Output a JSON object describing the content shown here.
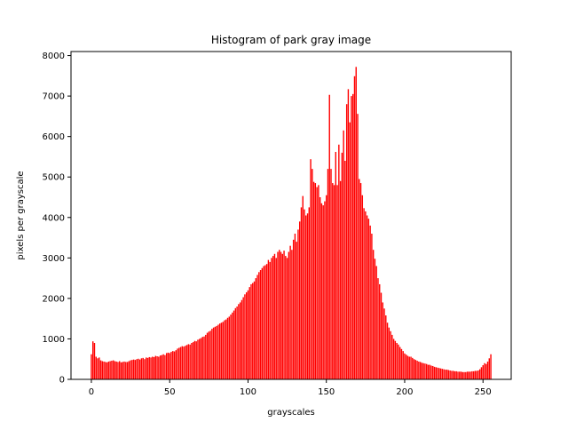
{
  "chart_data": {
    "type": "bar",
    "title": "Histogram of park gray image",
    "xlabel": "grayscales",
    "ylabel": "pixels per grayscale",
    "xlim": [
      -13,
      268
    ],
    "ylim": [
      0,
      8100
    ],
    "xticks": [
      0,
      50,
      100,
      150,
      200,
      250
    ],
    "yticks": [
      0,
      1000,
      2000,
      3000,
      4000,
      5000,
      6000,
      7000,
      8000
    ],
    "bar_color": "#ff0000",
    "grid": false,
    "legend": "none",
    "x_start": 0,
    "values": [
      620,
      940,
      900,
      560,
      520,
      540,
      470,
      450,
      440,
      430,
      420,
      440,
      450,
      460,
      470,
      450,
      440,
      430,
      450,
      420,
      430,
      440,
      430,
      430,
      450,
      470,
      480,
      490,
      480,
      500,
      510,
      490,
      520,
      530,
      500,
      540,
      530,
      550,
      540,
      560,
      550,
      580,
      570,
      560,
      590,
      600,
      620,
      600,
      650,
      660,
      650,
      680,
      700,
      690,
      720,
      760,
      780,
      800,
      820,
      810,
      830,
      850,
      870,
      860,
      900,
      920,
      950,
      940,
      980,
      1000,
      1020,
      1050,
      1060,
      1100,
      1150,
      1180,
      1200,
      1250,
      1280,
      1300,
      1320,
      1350,
      1380,
      1400,
      1420,
      1460,
      1480,
      1520,
      1550,
      1600,
      1650,
      1700,
      1760,
      1800,
      1860,
      1900,
      1960,
      2030,
      2100,
      2150,
      2200,
      2280,
      2350,
      2380,
      2420,
      2500,
      2580,
      2650,
      2700,
      2750,
      2800,
      2820,
      2850,
      2950,
      2900,
      3000,
      3050,
      3100,
      3000,
      3150,
      3200,
      3150,
      3100,
      3180,
      3050,
      3000,
      3150,
      3300,
      3200,
      3450,
      3600,
      3400,
      3700,
      3900,
      4250,
      4530,
      4200,
      4050,
      4100,
      4250,
      5440,
      5200,
      4880,
      4850,
      4750,
      4800,
      4500,
      4350,
      4300,
      4400,
      4550,
      5200,
      7030,
      5200,
      4850,
      4800,
      5620,
      4800,
      5800,
      4900,
      5600,
      6150,
      5400,
      6800,
      7170,
      6350,
      7000,
      7050,
      7490,
      7720,
      6560,
      4950,
      4850,
      4550,
      4230,
      4150,
      4050,
      3970,
      3800,
      3600,
      3200,
      2980,
      2800,
      2500,
      2350,
      2140,
      1900,
      1750,
      1580,
      1400,
      1280,
      1190,
      1100,
      1000,
      950,
      900,
      860,
      800,
      750,
      700,
      640,
      610,
      580,
      560,
      560,
      530,
      500,
      480,
      460,
      440,
      430,
      410,
      400,
      390,
      380,
      360,
      360,
      340,
      330,
      310,
      300,
      290,
      280,
      270,
      260,
      250,
      240,
      240,
      230,
      220,
      210,
      210,
      200,
      200,
      190,
      190,
      190,
      180,
      180,
      180,
      190,
      190,
      190,
      200,
      200,
      210,
      210,
      220,
      250,
      300,
      350,
      400,
      380,
      440,
      520,
      620
    ]
  }
}
